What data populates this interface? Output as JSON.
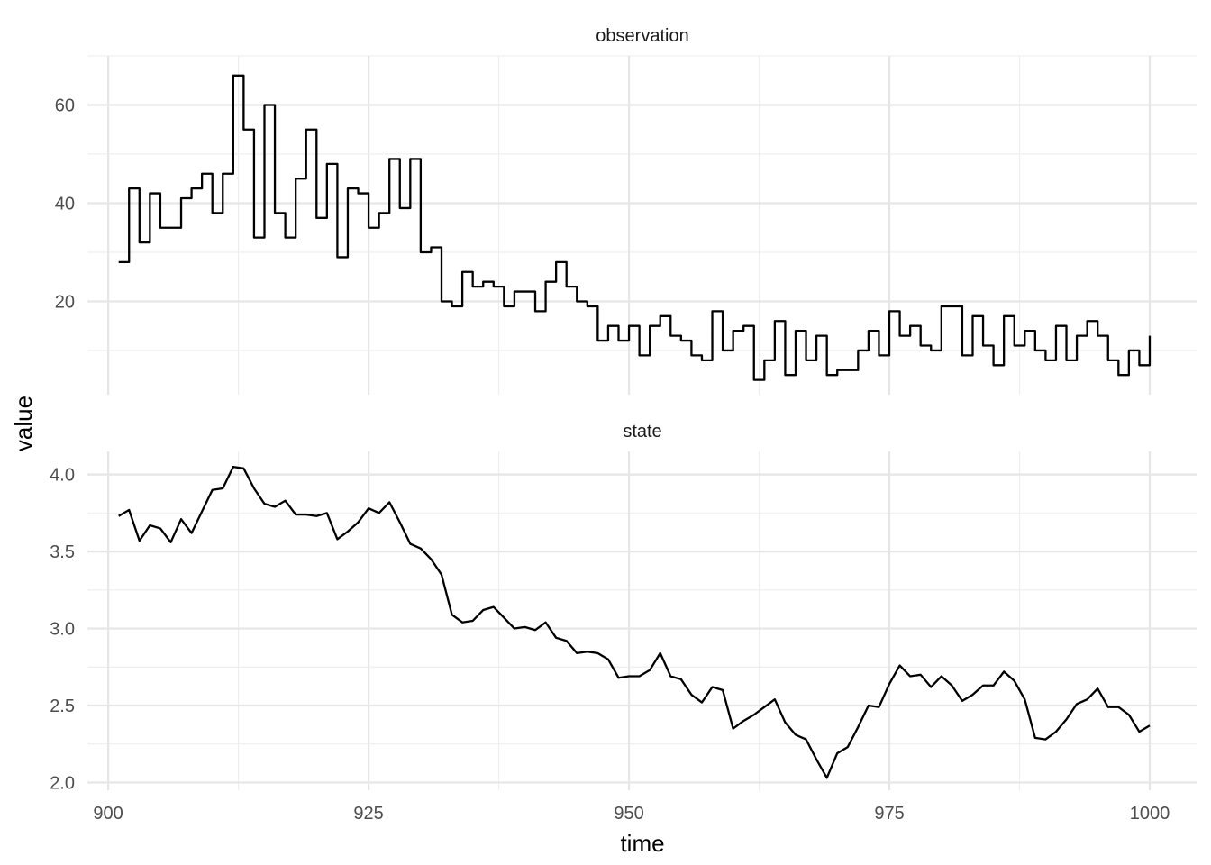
{
  "chart_data": {
    "type": "line",
    "xlabel": "time",
    "ylabel": "value",
    "x_ticks": [
      900,
      925,
      950,
      975,
      1000
    ],
    "xlim": [
      898,
      1004.5
    ],
    "grid": true,
    "facets": [
      {
        "strip_label": "observation",
        "style": "step",
        "ylim": [
          1,
          70
        ],
        "y_ticks": [
          20,
          40,
          60
        ],
        "y_tick_labels": [
          "20",
          "40",
          "60"
        ],
        "x": [
          901,
          902,
          903,
          904,
          905,
          906,
          907,
          908,
          909,
          910,
          911,
          912,
          913,
          914,
          915,
          916,
          917,
          918,
          919,
          920,
          921,
          922,
          923,
          924,
          925,
          926,
          927,
          928,
          929,
          930,
          931,
          932,
          933,
          934,
          935,
          936,
          937,
          938,
          939,
          940,
          941,
          942,
          943,
          944,
          945,
          946,
          947,
          948,
          949,
          950,
          951,
          952,
          953,
          954,
          955,
          956,
          957,
          958,
          959,
          960,
          961,
          962,
          963,
          964,
          965,
          966,
          967,
          968,
          969,
          970,
          971,
          972,
          973,
          974,
          975,
          976,
          977,
          978,
          979,
          980,
          981,
          982,
          983,
          984,
          985,
          986,
          987,
          988,
          989,
          990,
          991,
          992,
          993,
          994,
          995,
          996,
          997,
          998,
          999,
          1000
        ],
        "values": [
          28,
          43,
          32,
          42,
          35,
          35,
          41,
          43,
          46,
          38,
          46,
          66,
          55,
          33,
          60,
          38,
          33,
          45,
          55,
          37,
          48,
          29,
          43,
          42,
          35,
          38,
          49,
          39,
          49,
          30,
          31,
          20,
          19,
          26,
          23,
          24,
          23,
          19,
          22,
          22,
          18,
          24,
          28,
          23,
          20,
          19,
          12,
          15,
          12,
          15,
          9,
          15,
          17,
          13,
          12,
          9,
          8,
          18,
          10,
          14,
          15,
          4,
          8,
          16,
          5,
          14,
          8,
          13,
          5,
          6,
          6,
          10,
          14,
          9,
          18,
          13,
          15,
          11,
          10,
          19,
          19,
          9,
          17,
          11,
          7,
          17,
          11,
          14,
          10,
          8,
          15,
          8,
          13,
          16,
          13,
          8,
          5,
          10,
          7,
          13
        ]
      },
      {
        "strip_label": "state",
        "style": "line",
        "ylim": [
          1.95,
          4.15
        ],
        "y_ticks": [
          2.0,
          2.5,
          3.0,
          3.5,
          4.0
        ],
        "y_tick_labels": [
          "2.0",
          "2.5",
          "3.0",
          "3.5",
          "4.0"
        ],
        "x": [
          901,
          902,
          903,
          904,
          905,
          906,
          907,
          908,
          909,
          910,
          911,
          912,
          913,
          914,
          915,
          916,
          917,
          918,
          919,
          920,
          921,
          922,
          923,
          924,
          925,
          926,
          927,
          928,
          929,
          930,
          931,
          932,
          933,
          934,
          935,
          936,
          937,
          938,
          939,
          940,
          941,
          942,
          943,
          944,
          945,
          946,
          947,
          948,
          949,
          950,
          951,
          952,
          953,
          954,
          955,
          956,
          957,
          958,
          959,
          960,
          961,
          962,
          963,
          964,
          965,
          966,
          967,
          968,
          969,
          970,
          971,
          972,
          973,
          974,
          975,
          976,
          977,
          978,
          979,
          980,
          981,
          982,
          983,
          984,
          985,
          986,
          987,
          988,
          989,
          990,
          991,
          992,
          993,
          994,
          995,
          996,
          997,
          998,
          999,
          1000
        ],
        "values": [
          3.73,
          3.77,
          3.57,
          3.67,
          3.65,
          3.56,
          3.71,
          3.62,
          3.76,
          3.9,
          3.91,
          4.05,
          4.04,
          3.91,
          3.81,
          3.79,
          3.83,
          3.74,
          3.74,
          3.73,
          3.75,
          3.58,
          3.63,
          3.69,
          3.78,
          3.75,
          3.82,
          3.69,
          3.55,
          3.52,
          3.45,
          3.35,
          3.09,
          3.04,
          3.05,
          3.12,
          3.14,
          3.07,
          3.0,
          3.01,
          2.99,
          3.04,
          2.94,
          2.92,
          2.84,
          2.85,
          2.84,
          2.8,
          2.68,
          2.69,
          2.69,
          2.73,
          2.84,
          2.69,
          2.67,
          2.57,
          2.52,
          2.62,
          2.6,
          2.35,
          2.4,
          2.44,
          2.49,
          2.54,
          2.39,
          2.31,
          2.28,
          2.15,
          2.03,
          2.19,
          2.23,
          2.36,
          2.5,
          2.49,
          2.64,
          2.76,
          2.69,
          2.7,
          2.62,
          2.69,
          2.63,
          2.53,
          2.57,
          2.63,
          2.63,
          2.72,
          2.66,
          2.54,
          2.29,
          2.28,
          2.33,
          2.41,
          2.51,
          2.54,
          2.61,
          2.49,
          2.49,
          2.44,
          2.33,
          2.37
        ]
      }
    ]
  }
}
